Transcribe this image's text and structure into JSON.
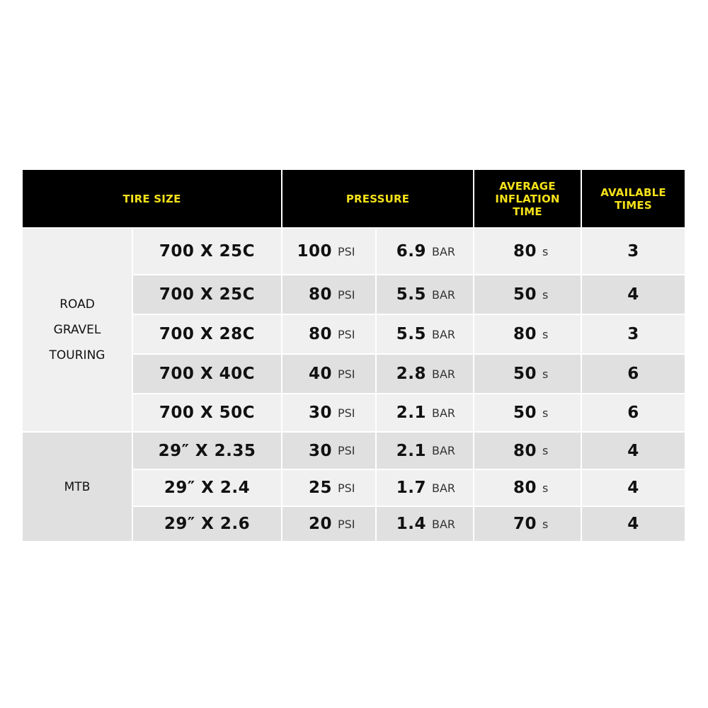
{
  "header": {
    "tire_size": "TIRE SIZE",
    "pressure": "PRESSURE",
    "avg_time": "AVERAGE\nINFLATION\nTIME",
    "available": "AVAILABLE\nTIMES"
  },
  "categories": [
    {
      "label": "ROAD\nGRAVEL\nTOURING"
    },
    {
      "label": "MTB"
    }
  ],
  "units": {
    "psi": "PSI",
    "bar": "BAR",
    "seconds": "s"
  },
  "rows": [
    {
      "size": "700 X 25C",
      "psi": "100",
      "bar": "6.9",
      "time": "80",
      "times": "3"
    },
    {
      "size": "700 X 25C",
      "psi": "80",
      "bar": "5.5",
      "time": "50",
      "times": "4"
    },
    {
      "size": "700 X 28C",
      "psi": "80",
      "bar": "5.5",
      "time": "80",
      "times": "3"
    },
    {
      "size": "700 X 40C",
      "psi": "40",
      "bar": "2.8",
      "time": "50",
      "times": "6"
    },
    {
      "size": "700 X 50C",
      "psi": "30",
      "bar": "2.1",
      "time": "50",
      "times": "6"
    },
    {
      "size": "29″ X 2.35",
      "psi": "30",
      "bar": "2.1",
      "time": "80",
      "times": "4"
    },
    {
      "size": "29″ X 2.4",
      "psi": "25",
      "bar": "1.7",
      "time": "80",
      "times": "4"
    },
    {
      "size": "29″ X 2.6",
      "psi": "20",
      "bar": "1.4",
      "time": "70",
      "times": "4"
    }
  ],
  "colors": {
    "header_bg": "#000000",
    "header_text": "#f5e11a",
    "row_light": "#f0f0f0",
    "row_dark": "#e0e0e0"
  }
}
